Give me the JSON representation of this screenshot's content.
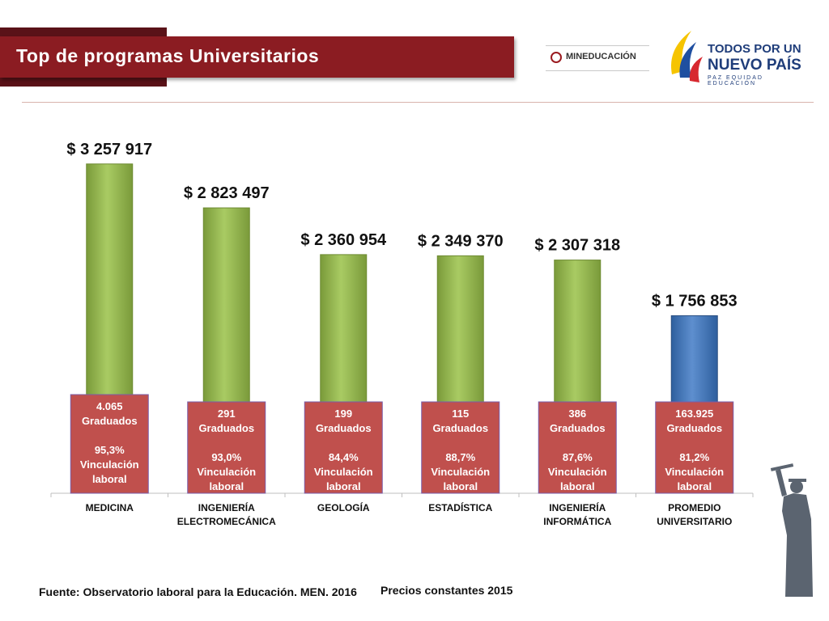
{
  "header": {
    "title": "Top de programas Universitarios",
    "ministry_logo_text": "MINEDUCACIÓN",
    "campaign_logo_line1": "TODOS POR UN",
    "campaign_logo_line2": "NUEVO PAÍS",
    "campaign_logo_line3": "PAZ EQUIDAD EDUCACIÓN"
  },
  "colors": {
    "title_bar": "#8b1c22",
    "bar_green": "#9bbb59",
    "bar_blue": "#4f81bd",
    "label_box": "#c0504d"
  },
  "chart_data": {
    "type": "bar",
    "categories": [
      [
        "MEDICINA"
      ],
      [
        "INGENIERÍA",
        "ELECTROMECÁNICA"
      ],
      [
        "GEOLOGÍA"
      ],
      [
        "ESTADÍSTICA"
      ],
      [
        "INGENIERÍA",
        "INFORMÁTICA"
      ],
      [
        "PROMEDIO",
        "UNIVERSITARIO"
      ]
    ],
    "values": [
      3257917,
      2823497,
      2360954,
      2349370,
      2307318,
      1756853
    ],
    "value_labels": [
      "$ 3 257 917",
      "$ 2 823 497",
      "$ 2 360 954",
      "$ 2 349 370",
      "$ 2 307 318",
      "$ 1 756 853"
    ],
    "highlight_index": 5,
    "graduates": [
      "4.065",
      "291",
      "199",
      "115",
      "386",
      "163.925"
    ],
    "graduates_label": "Graduados",
    "employment": [
      "95,3%",
      "93,0%",
      "84,4%",
      "88,7%",
      "87,6%",
      "81,2%"
    ],
    "employment_label_lines": [
      "Vinculación",
      "laboral"
    ],
    "ylim": [
      0,
      3600000
    ],
    "grid": false,
    "legend": "none"
  },
  "footer": {
    "source": "Fuente: Observatorio laboral para la Educación. MEN. 2016",
    "prices_note": "Precios constantes  2015"
  }
}
